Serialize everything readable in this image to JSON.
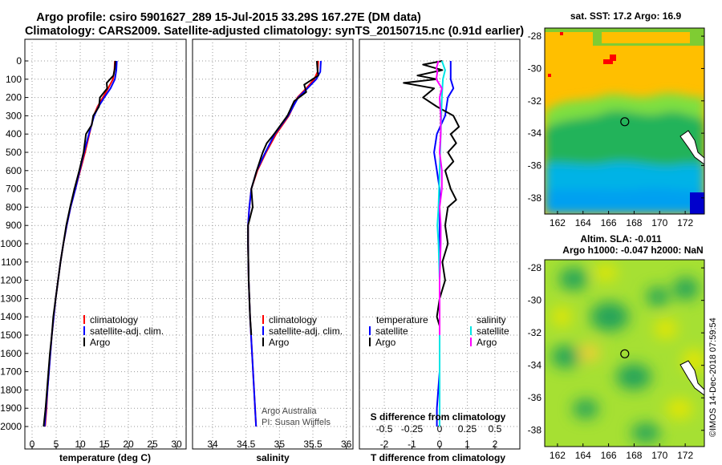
{
  "title": {
    "line1": "Argo profile: csiro 5901627_289 15-Jul-2015 33.29S 167.27E (DM data)",
    "line2": "Climatology: CARS2009. Satellite-adjusted climatology: synTS_20150715.nc (0.91d earlier)"
  },
  "colors": {
    "climatology": "#ff0000",
    "satellite": "#0000ff",
    "argo": "#000000",
    "temp_sat_diff": "#0000ff",
    "sal_sat_diff": "#00e5e5",
    "sal_argo_diff": "#ff00ff"
  },
  "depth_ticks": [
    "0",
    "100",
    "200",
    "300",
    "400",
    "500",
    "600",
    "700",
    "800",
    "900",
    "1000",
    "1100",
    "1200",
    "1300",
    "1400",
    "1500",
    "1600",
    "1700",
    "1800",
    "1900",
    "2000"
  ],
  "footer": {
    "org": "Argo Australia",
    "pi": "PI: Susan Wijffels",
    "credit": "©IMOS 14-Dec-2018 07:59:54"
  },
  "chart_data": [
    {
      "type": "line",
      "xlabel": "temperature (deg C)",
      "xticks": [
        "0",
        "5",
        "10",
        "15",
        "20",
        "25",
        "30"
      ],
      "xlim": [
        -1.5,
        32
      ],
      "ylim": [
        2050,
        0
      ],
      "legend": [
        {
          "label": "climatology",
          "color": "#ff0000"
        },
        {
          "label": "satellite-adj. clim.",
          "color": "#0000ff"
        },
        {
          "label": "Argo",
          "color": "#000000"
        }
      ],
      "series": [
        {
          "name": "climatology",
          "color": "#ff0000",
          "points": [
            [
              17.2,
              0
            ],
            [
              17.1,
              50
            ],
            [
              16.8,
              100
            ],
            [
              15.8,
              150
            ],
            [
              14.7,
              200
            ],
            [
              13.6,
              250
            ],
            [
              12.8,
              300
            ],
            [
              11.9,
              400
            ],
            [
              11.0,
              500
            ],
            [
              10.0,
              600
            ],
            [
              9.0,
              700
            ],
            [
              8.0,
              800
            ],
            [
              7.2,
              900
            ],
            [
              6.5,
              1000
            ],
            [
              5.9,
              1100
            ],
            [
              5.4,
              1200
            ],
            [
              4.9,
              1300
            ],
            [
              4.5,
              1400
            ],
            [
              4.1,
              1500
            ],
            [
              3.8,
              1600
            ],
            [
              3.5,
              1700
            ],
            [
              3.2,
              1800
            ],
            [
              3.0,
              1900
            ],
            [
              2.7,
              2000
            ]
          ]
        },
        {
          "name": "satellite-adj. clim.",
          "color": "#0000ff",
          "points": [
            [
              17.6,
              0
            ],
            [
              17.5,
              50
            ],
            [
              17.2,
              100
            ],
            [
              16.3,
              150
            ],
            [
              15.0,
              200
            ],
            [
              13.8,
              250
            ],
            [
              12.9,
              300
            ],
            [
              11.8,
              400
            ],
            [
              10.8,
              500
            ],
            [
              9.9,
              600
            ],
            [
              9.0,
              700
            ],
            [
              8.0,
              800
            ],
            [
              7.2,
              900
            ],
            [
              6.5,
              1000
            ],
            [
              5.9,
              1100
            ],
            [
              5.4,
              1200
            ],
            [
              4.9,
              1300
            ],
            [
              4.5,
              1400
            ],
            [
              4.1,
              1500
            ],
            [
              3.8,
              1600
            ],
            [
              3.5,
              1700
            ],
            [
              3.2,
              1800
            ],
            [
              2.9,
              1900
            ],
            [
              2.6,
              2000
            ]
          ]
        },
        {
          "name": "Argo",
          "color": "#000000",
          "points": [
            [
              17.3,
              0
            ],
            [
              17.2,
              40
            ],
            [
              16.9,
              80
            ],
            [
              15.5,
              120
            ],
            [
              15.6,
              150
            ],
            [
              14.1,
              200
            ],
            [
              13.9,
              250
            ],
            [
              12.7,
              300
            ],
            [
              12.4,
              350
            ],
            [
              11.2,
              400
            ],
            [
              10.7,
              500
            ],
            [
              9.8,
              600
            ],
            [
              8.8,
              700
            ],
            [
              7.9,
              800
            ],
            [
              7.1,
              900
            ],
            [
              6.5,
              1000
            ],
            [
              5.9,
              1100
            ],
            [
              5.4,
              1200
            ],
            [
              4.9,
              1300
            ],
            [
              4.4,
              1400
            ],
            [
              4.1,
              1500
            ],
            [
              3.7,
              1600
            ],
            [
              3.4,
              1700
            ],
            [
              3.1,
              1800
            ],
            [
              2.8,
              1900
            ],
            [
              2.4,
              2000
            ]
          ]
        }
      ]
    },
    {
      "type": "line",
      "xlabel": "salinity",
      "xticks": [
        "34",
        "34.5",
        "35",
        "35.5",
        "36"
      ],
      "xlim": [
        33.7,
        36.1
      ],
      "ylim": [
        2050,
        0
      ],
      "legend": [
        {
          "label": "climatology",
          "color": "#ff0000"
        },
        {
          "label": "satellite-adj. clim.",
          "color": "#0000ff"
        },
        {
          "label": "Argo",
          "color": "#000000"
        }
      ],
      "series": [
        {
          "name": "climatology",
          "color": "#ff0000",
          "points": [
            [
              35.58,
              0
            ],
            [
              35.57,
              60
            ],
            [
              35.52,
              100
            ],
            [
              35.4,
              150
            ],
            [
              35.27,
              200
            ],
            [
              35.14,
              300
            ],
            [
              34.95,
              400
            ],
            [
              34.8,
              500
            ],
            [
              34.67,
              600
            ],
            [
              34.58,
              700
            ],
            [
              34.55,
              800
            ],
            [
              34.53,
              900
            ],
            [
              34.53,
              1000
            ],
            [
              34.54,
              1200
            ],
            [
              34.56,
              1400
            ],
            [
              34.59,
              1600
            ],
            [
              34.62,
              1800
            ],
            [
              34.65,
              2000
            ]
          ]
        },
        {
          "name": "satellite-adj. clim.",
          "color": "#0000ff",
          "points": [
            [
              35.62,
              0
            ],
            [
              35.61,
              60
            ],
            [
              35.55,
              100
            ],
            [
              35.42,
              150
            ],
            [
              35.28,
              200
            ],
            [
              35.13,
              300
            ],
            [
              34.93,
              400
            ],
            [
              34.79,
              500
            ],
            [
              34.66,
              600
            ],
            [
              34.58,
              700
            ],
            [
              34.55,
              800
            ],
            [
              34.53,
              900
            ],
            [
              34.53,
              1000
            ],
            [
              34.54,
              1200
            ],
            [
              34.56,
              1400
            ],
            [
              34.59,
              1600
            ],
            [
              34.62,
              1800
            ],
            [
              34.65,
              2000
            ]
          ]
        },
        {
          "name": "Argo",
          "color": "#000000",
          "points": [
            [
              35.56,
              0
            ],
            [
              35.57,
              50
            ],
            [
              35.58,
              80
            ],
            [
              35.37,
              130
            ],
            [
              35.4,
              170
            ],
            [
              35.22,
              220
            ],
            [
              35.12,
              300
            ],
            [
              34.92,
              400
            ],
            [
              34.81,
              450
            ],
            [
              34.75,
              500
            ],
            [
              34.66,
              600
            ],
            [
              34.58,
              700
            ],
            [
              34.6,
              800
            ],
            [
              34.53,
              900
            ],
            [
              34.53,
              1000
            ],
            [
              34.54,
              1200
            ],
            [
              34.56,
              1400
            ],
            [
              34.58,
              1500
            ]
          ]
        }
      ]
    },
    {
      "type": "line",
      "xlabel": "T difference from climatology",
      "secondary_xlabel": "S difference from climatology",
      "xticks": [
        "-2",
        "-1",
        "0",
        "1",
        "2"
      ],
      "secondary_xticks": [
        "-0.5",
        "-0.25",
        "0",
        "0.25",
        "0.5"
      ],
      "xlim": [
        -2.9,
        2.9
      ],
      "ylim": [
        2050,
        0
      ],
      "legend_left_title": "temperature",
      "legend_right_title": "salinity",
      "legend": [
        {
          "label": "satellite",
          "color": "#0000ff"
        },
        {
          "label": "Argo",
          "color": "#000000"
        },
        {
          "label": "satellite",
          "color": "#00e5e5"
        },
        {
          "label": "Argo",
          "color": "#ff00ff"
        }
      ],
      "series": [
        {
          "name": "temperature satellite",
          "color": "#0000ff",
          "points": [
            [
              0.4,
              0
            ],
            [
              0.4,
              50
            ],
            [
              0.4,
              100
            ],
            [
              0.5,
              150
            ],
            [
              0.3,
              200
            ],
            [
              0.2,
              300
            ],
            [
              -0.1,
              400
            ],
            [
              -0.2,
              500
            ],
            [
              -0.1,
              600
            ],
            [
              0,
              700
            ],
            [
              0,
              900
            ],
            [
              0,
              1100
            ],
            [
              0,
              1300
            ],
            [
              0,
              1500
            ],
            [
              0,
              1700
            ],
            [
              -0.1,
              1900
            ],
            [
              -0.1,
              2000
            ]
          ]
        },
        {
          "name": "temperature Argo",
          "color": "#000000",
          "points": [
            [
              0.1,
              0
            ],
            [
              -0.6,
              20
            ],
            [
              0.1,
              50
            ],
            [
              -0.8,
              80
            ],
            [
              -0.1,
              100
            ],
            [
              -1.3,
              120
            ],
            [
              -0.2,
              150
            ],
            [
              -0.6,
              200
            ],
            [
              -0.1,
              250
            ],
            [
              0.5,
              300
            ],
            [
              0.7,
              360
            ],
            [
              0.4,
              400
            ],
            [
              0.6,
              450
            ],
            [
              0.3,
              500
            ],
            [
              0.5,
              550
            ],
            [
              0.2,
              600
            ],
            [
              0.4,
              700
            ],
            [
              0.6,
              760
            ],
            [
              0.3,
              800
            ],
            [
              0.2,
              900
            ],
            [
              0.3,
              1000
            ],
            [
              0.1,
              1100
            ],
            [
              0.2,
              1200
            ],
            [
              0,
              1300
            ],
            [
              -0.1,
              1400
            ],
            [
              0,
              1450
            ]
          ]
        },
        {
          "name": "salinity satellite",
          "color": "#00e5e5",
          "points": [
            [
              0.02,
              0
            ],
            [
              0.05,
              50
            ],
            [
              0.03,
              100
            ],
            [
              0.02,
              200
            ],
            [
              0.01,
              400
            ],
            [
              0,
              600
            ],
            [
              -0.01,
              800
            ],
            [
              -0.02,
              900
            ],
            [
              -0.01,
              1000
            ],
            [
              0,
              1200
            ],
            [
              0,
              1400
            ],
            [
              0,
              1600
            ],
            [
              0,
              1800
            ],
            [
              0,
              2000
            ]
          ]
        },
        {
          "name": "salinity Argo",
          "color": "#ff00ff",
          "points": [
            [
              -0.01,
              0
            ],
            [
              -0.03,
              40
            ],
            [
              -0.02,
              60
            ],
            [
              -0.03,
              100
            ],
            [
              0.02,
              150
            ],
            [
              0,
              200
            ],
            [
              0.01,
              300
            ],
            [
              0.01,
              400
            ],
            [
              0,
              500
            ],
            [
              0.02,
              600
            ],
            [
              0.02,
              700
            ],
            [
              0,
              800
            ],
            [
              0.01,
              900
            ],
            [
              0.01,
              1000
            ],
            [
              0,
              1200
            ],
            [
              0,
              1400
            ],
            [
              0,
              1500
            ]
          ]
        }
      ]
    },
    {
      "type": "heatmap",
      "title": "sat. SST: 17.2 Argo: 16.9",
      "xticks": [
        "162",
        "164",
        "166",
        "168",
        "170",
        "172"
      ],
      "yticks": [
        "-28",
        "-30",
        "-32",
        "-34",
        "-36",
        "-38"
      ],
      "xlim": [
        161,
        173.5
      ],
      "ylim": [
        -39,
        -27.5
      ],
      "marker": [
        167.27,
        -33.29
      ]
    },
    {
      "type": "heatmap",
      "title_line1": "Altim. SLA: -0.011",
      "title_line2": "Argo h1000: -0.047 h2000: NaN",
      "xticks": [
        "162",
        "164",
        "166",
        "168",
        "170",
        "172"
      ],
      "yticks": [
        "-28",
        "-30",
        "-32",
        "-34",
        "-36",
        "-38"
      ],
      "xlim": [
        161,
        173.5
      ],
      "ylim": [
        -39,
        -27.5
      ],
      "marker": [
        167.27,
        -33.29
      ]
    }
  ]
}
